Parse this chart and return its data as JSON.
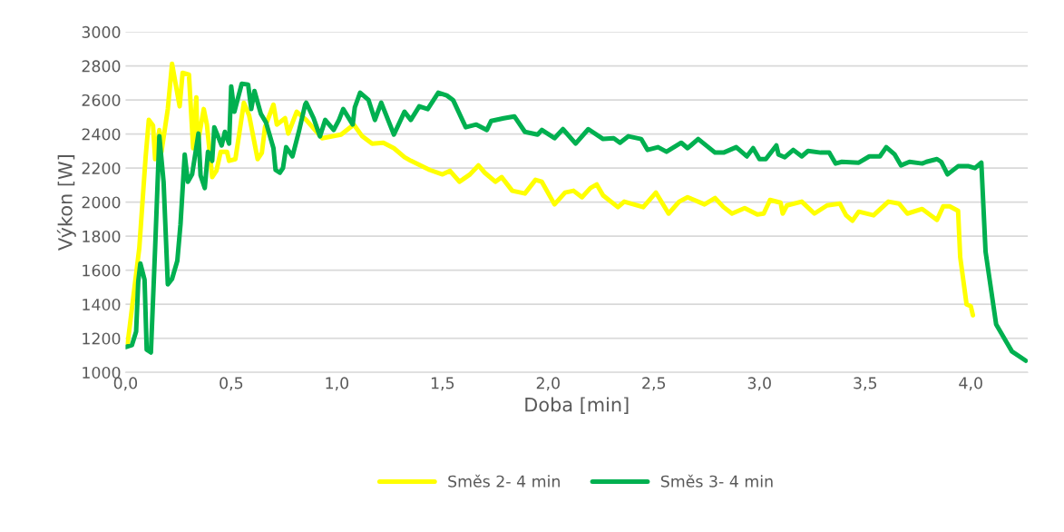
{
  "chart_data": {
    "type": "line",
    "xlabel": "Doba [min]",
    "ylabel": "Výkon [W]",
    "xlim": [
      0,
      4.27
    ],
    "ylim": [
      1000,
      3000
    ],
    "xticks": [
      {
        "value": 0,
        "label": "0,0"
      },
      {
        "value": 0.5,
        "label": "0,5"
      },
      {
        "value": 1,
        "label": "1,0"
      },
      {
        "value": 1.5,
        "label": "1,5"
      },
      {
        "value": 2,
        "label": "2,0"
      },
      {
        "value": 2.5,
        "label": "2,5"
      },
      {
        "value": 3,
        "label": "3,0"
      },
      {
        "value": 3.5,
        "label": "3,5"
      },
      {
        "value": 4,
        "label": "4,0"
      }
    ],
    "yticks": [
      1000,
      1200,
      1400,
      1600,
      1800,
      2000,
      2200,
      2400,
      2600,
      2800,
      3000
    ],
    "grid": "y",
    "legend": "bottom",
    "marker": "none",
    "line_style": "solid",
    "series": [
      {
        "name": "Směs 2- 4 min",
        "color": "#ffff00",
        "x": [
          0.01,
          0.065,
          0.095,
          0.11,
          0.13,
          0.14,
          0.16,
          0.17,
          0.2,
          0.22,
          0.256,
          0.27,
          0.3,
          0.32,
          0.335,
          0.34,
          0.37,
          0.385,
          0.41,
          0.43,
          0.45,
          0.48,
          0.49,
          0.52,
          0.56,
          0.585,
          0.625,
          0.645,
          0.66,
          0.7,
          0.716,
          0.755,
          0.77,
          0.81,
          0.855,
          0.93,
          1.02,
          1.08,
          1.12,
          1.167,
          1.22,
          1.27,
          1.32,
          1.35,
          1.44,
          1.5,
          1.535,
          1.58,
          1.63,
          1.67,
          1.7,
          1.75,
          1.78,
          1.83,
          1.89,
          1.94,
          1.97,
          2.03,
          2.08,
          2.12,
          2.16,
          2.2,
          2.23,
          2.26,
          2.33,
          2.36,
          2.45,
          2.51,
          2.57,
          2.62,
          2.66,
          2.74,
          2.79,
          2.83,
          2.87,
          2.93,
          2.99,
          3.02,
          3.05,
          3.1,
          3.11,
          3.13,
          3.2,
          3.26,
          3.32,
          3.38,
          3.41,
          3.44,
          3.47,
          3.54,
          3.61,
          3.66,
          3.7,
          3.77,
          3.84,
          3.87,
          3.9,
          3.94,
          3.95,
          3.98,
          4.0,
          4.01
        ],
        "values": [
          1170,
          1730,
          2264,
          2483,
          2450,
          2253,
          2424,
          2296,
          2547,
          2813,
          2563,
          2760,
          2750,
          2317,
          2616,
          2333,
          2547,
          2456,
          2147,
          2184,
          2296,
          2296,
          2243,
          2253,
          2584,
          2509,
          2253,
          2290,
          2440,
          2573,
          2456,
          2493,
          2403,
          2531,
          2483,
          2376,
          2397,
          2456,
          2387,
          2344,
          2349,
          2317,
          2264,
          2243,
          2189,
          2163,
          2184,
          2120,
          2163,
          2216,
          2173,
          2120,
          2147,
          2067,
          2051,
          2131,
          2120,
          1987,
          2056,
          2067,
          2029,
          2083,
          2104,
          2040,
          1971,
          2003,
          1971,
          2056,
          1933,
          2003,
          2029,
          1987,
          2024,
          1971,
          1933,
          1965,
          1928,
          1933,
          2013,
          1997,
          1933,
          1981,
          2003,
          1933,
          1981,
          1992,
          1923,
          1891,
          1944,
          1923,
          2003,
          1992,
          1933,
          1960,
          1896,
          1976,
          1976,
          1949,
          1677,
          1400,
          1389,
          1336
        ]
      },
      {
        "name": "Směs 3- 4 min",
        "color": "#00b050",
        "x": [
          0.0,
          0.03,
          0.05,
          0.06,
          0.07,
          0.09,
          0.1,
          0.12,
          0.14,
          0.16,
          0.18,
          0.2,
          0.22,
          0.245,
          0.26,
          0.28,
          0.295,
          0.315,
          0.345,
          0.355,
          0.375,
          0.39,
          0.41,
          0.42,
          0.455,
          0.47,
          0.49,
          0.5,
          0.515,
          0.55,
          0.58,
          0.595,
          0.61,
          0.64,
          0.665,
          0.68,
          0.7,
          0.71,
          0.73,
          0.745,
          0.76,
          0.79,
          0.82,
          0.85,
          0.855,
          0.89,
          0.92,
          0.945,
          0.985,
          1.01,
          1.03,
          1.075,
          1.085,
          1.11,
          1.15,
          1.18,
          1.21,
          1.27,
          1.32,
          1.35,
          1.39,
          1.43,
          1.48,
          1.52,
          1.55,
          1.61,
          1.66,
          1.71,
          1.73,
          1.79,
          1.84,
          1.89,
          1.95,
          1.97,
          2.03,
          2.07,
          2.13,
          2.19,
          2.26,
          2.31,
          2.34,
          2.38,
          2.44,
          2.47,
          2.52,
          2.56,
          2.63,
          2.66,
          2.71,
          2.79,
          2.83,
          2.89,
          2.94,
          2.97,
          3.0,
          3.03,
          3.08,
          3.09,
          3.12,
          3.16,
          3.2,
          3.23,
          3.29,
          3.33,
          3.36,
          3.39,
          3.47,
          3.52,
          3.57,
          3.6,
          3.64,
          3.67,
          3.71,
          3.77,
          3.79,
          3.84,
          3.86,
          3.89,
          3.94,
          3.99,
          4.02,
          4.05,
          4.07,
          4.12,
          4.17,
          4.195,
          4.26
        ],
        "values": [
          1149,
          1160,
          1240,
          1533,
          1640,
          1544,
          1133,
          1117,
          1731,
          2387,
          2120,
          1517,
          1549,
          1656,
          1869,
          2280,
          2120,
          2163,
          2403,
          2157,
          2083,
          2296,
          2243,
          2440,
          2333,
          2413,
          2344,
          2680,
          2531,
          2696,
          2691,
          2547,
          2653,
          2520,
          2467,
          2403,
          2317,
          2189,
          2173,
          2200,
          2323,
          2269,
          2413,
          2573,
          2584,
          2493,
          2387,
          2483,
          2424,
          2483,
          2547,
          2456,
          2557,
          2643,
          2600,
          2483,
          2584,
          2397,
          2531,
          2483,
          2563,
          2547,
          2643,
          2627,
          2600,
          2440,
          2456,
          2424,
          2477,
          2493,
          2504,
          2413,
          2397,
          2424,
          2376,
          2429,
          2344,
          2429,
          2371,
          2376,
          2349,
          2387,
          2371,
          2307,
          2323,
          2296,
          2349,
          2317,
          2371,
          2291,
          2291,
          2323,
          2269,
          2317,
          2253,
          2253,
          2333,
          2280,
          2264,
          2307,
          2269,
          2301,
          2291,
          2291,
          2227,
          2237,
          2232,
          2269,
          2269,
          2323,
          2280,
          2216,
          2237,
          2227,
          2237,
          2253,
          2237,
          2163,
          2211,
          2211,
          2200,
          2232,
          1709,
          1283,
          1176,
          1123,
          1069
        ]
      }
    ]
  }
}
